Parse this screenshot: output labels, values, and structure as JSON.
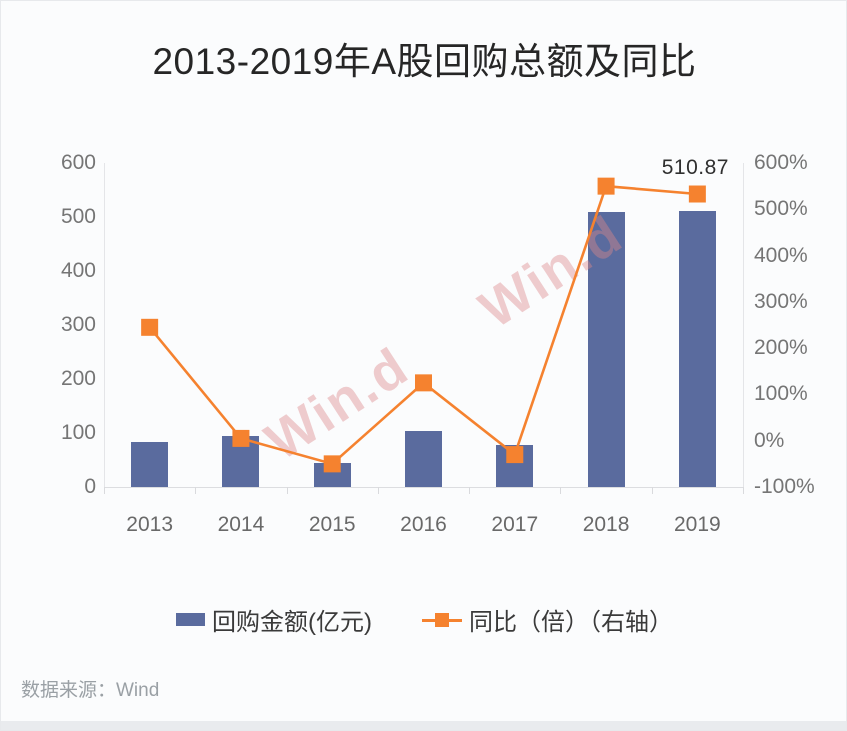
{
  "page": {
    "title": "2013-2019年A股回购总额及同比",
    "source_label": "数据来源：Wind",
    "watermark": "Win.d"
  },
  "colors": {
    "bar": "#5a6b9e",
    "line": "#f5822f",
    "title_text": "#262626",
    "axis_text": "#757575",
    "legend_text": "#3a3a3a",
    "watermark_pink": "rgba(219,135,138,0.42)",
    "source_text": "#9aa0a5"
  },
  "chart_data": {
    "type": "bar",
    "subtype": "combo-bar-line-dual-axis",
    "title": "2013-2019年A股回购总额及同比",
    "categories": [
      "2013",
      "2014",
      "2015",
      "2016",
      "2017",
      "2018",
      "2019"
    ],
    "series": [
      {
        "name": "回购金额(亿元)",
        "chart_type": "bar",
        "axis": "left",
        "color": "#5a6b9e",
        "values": [
          84,
          94,
          45,
          104,
          77,
          510,
          510.87
        ]
      },
      {
        "name": "同比（倍）（右轴）",
        "chart_type": "line",
        "axis": "right",
        "color": "#f5822f",
        "marker": "square",
        "values_percent": [
          245,
          5,
          -50,
          125,
          -30,
          550,
          533
        ]
      }
    ],
    "left_axis": {
      "min": 0,
      "max": 600,
      "ticks": [
        "600",
        "500",
        "400",
        "300",
        "200",
        "100",
        "0"
      ]
    },
    "right_axis": {
      "min": -100,
      "max": 600,
      "ticks": [
        "600%",
        "500%",
        "400%",
        "300%",
        "200%",
        "100%",
        "0%",
        "-100%"
      ]
    },
    "data_labels": [
      {
        "category": "2019",
        "series": "回购金额(亿元)",
        "text": "510.87"
      }
    ],
    "legend_position": "bottom",
    "grid": false
  }
}
